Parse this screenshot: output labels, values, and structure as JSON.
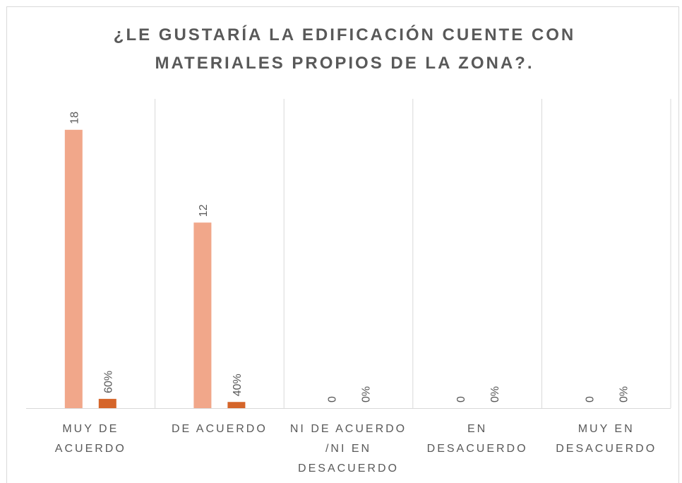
{
  "chart_data": {
    "type": "bar",
    "title": "¿LE GUSTARÍA LA EDIFICACIÓN  CUENTE CON MATERIALES PROPIOS DE LA ZONA?.",
    "categories": [
      "MUY DE ACUERDO",
      "DE ACUERDO",
      "NI DE ACUERDO /NI EN DESACUERDO",
      "EN DESACUERDO",
      "MUY EN DESACUERDO"
    ],
    "series": [
      {
        "color": "#f1a78a",
        "values": [
          18,
          12,
          0,
          0,
          0
        ]
      },
      {
        "color": "#d5652a",
        "values": [
          0.6,
          0.4,
          0,
          0,
          0
        ],
        "value_labels": [
          "60%",
          "40%",
          "0%",
          "0%",
          "0%"
        ]
      }
    ],
    "ylim": [
      0,
      20
    ]
  }
}
